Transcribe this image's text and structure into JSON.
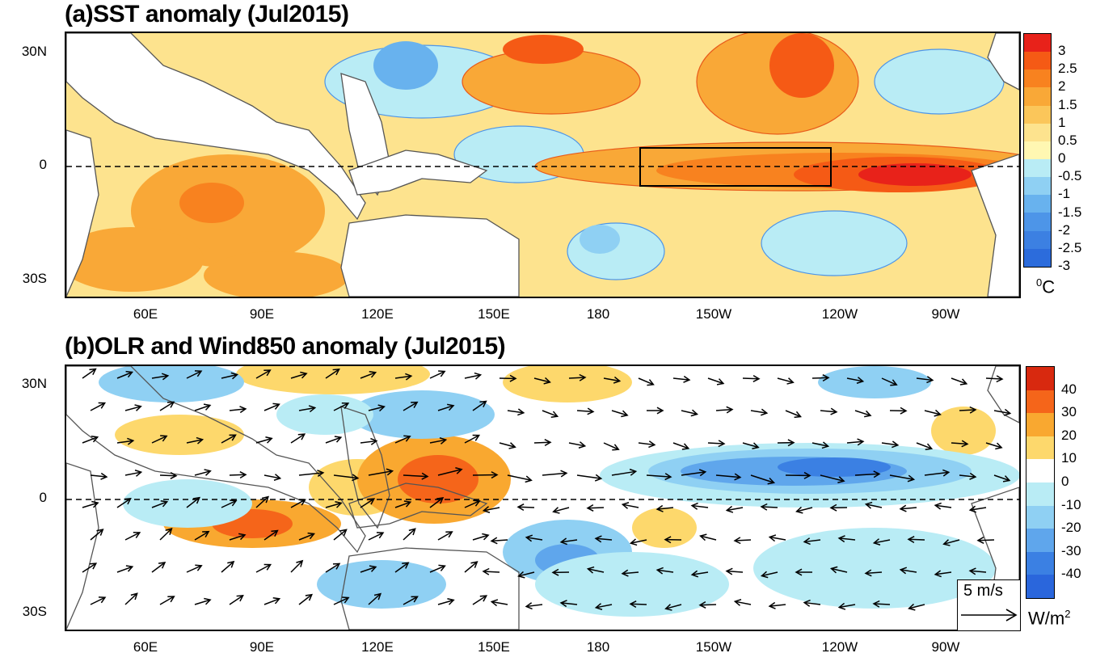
{
  "panel_a": {
    "title": "(a)SST anomaly (Jul2015)",
    "lat_labels": [
      "30N",
      "0",
      "30S"
    ],
    "lon_labels": [
      "60E",
      "90E",
      "120E",
      "150E",
      "180",
      "150W",
      "120W",
      "90W"
    ],
    "colorbar_labels": [
      "3",
      "2.5",
      "2",
      "1.5",
      "1",
      "0.5",
      "0",
      "-0.5",
      "-1",
      "-1.5",
      "-2",
      "-2.5",
      "-3"
    ],
    "colorbar_colors": [
      "#e8221a",
      "#f55a15",
      "#f8821f",
      "#f9a837",
      "#fbc65a",
      "#fde38e",
      "#fff7b2",
      "#b9ecf5",
      "#8fd0f3",
      "#68b2ee",
      "#4d95e8",
      "#3c80e2",
      "#2c6cdc"
    ],
    "unit": "0C"
  },
  "panel_b": {
    "title": "(b)OLR and Wind850 anomaly (Jul2015)",
    "lat_labels": [
      "30N",
      "0",
      "30S"
    ],
    "lon_labels": [
      "60E",
      "90E",
      "120E",
      "150E",
      "180",
      "150W",
      "120W",
      "90W"
    ],
    "colorbar_labels": [
      "40",
      "30",
      "20",
      "10",
      "0",
      "-10",
      "-20",
      "-30",
      "-40"
    ],
    "colorbar_colors": [
      "#d8290f",
      "#f5651a",
      "#f9a830",
      "#fdd86c",
      "#ffffff",
      "#b9ecf5",
      "#8fd0f3",
      "#5fa6ec",
      "#3b80e3",
      "#2a66dc"
    ],
    "unit_main": "W/m",
    "unit_exp": "2",
    "ref_vector": "5 m/s"
  }
}
